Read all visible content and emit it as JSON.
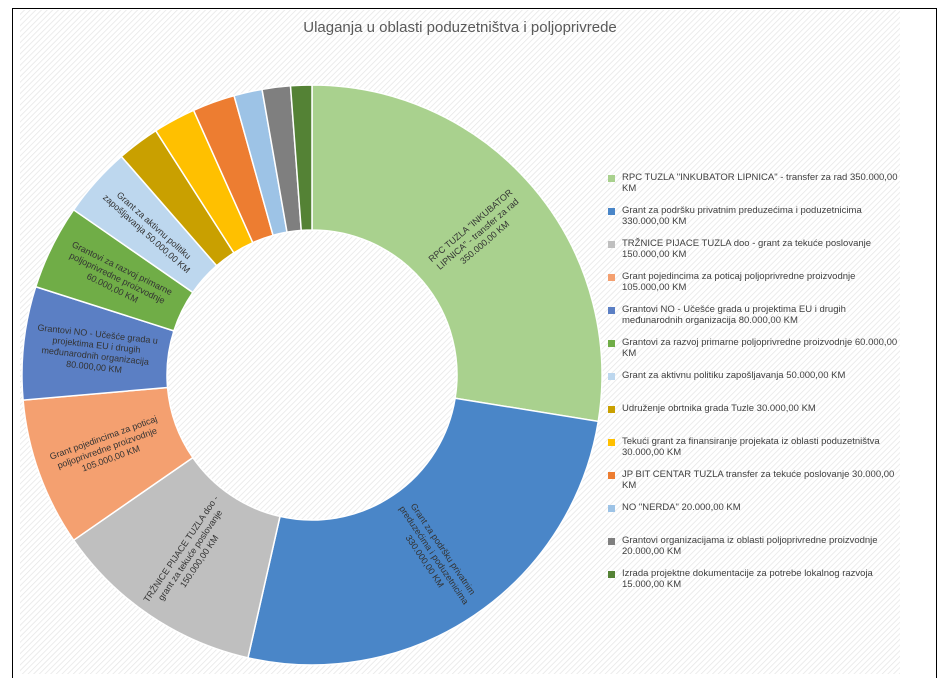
{
  "chart_data": {
    "type": "donut",
    "title": "Ulaganja u oblasti poduzetništva i poljoprivrede",
    "categories": [
      "RPC TUZLA \"INKUBATOR LIPNICA\"  - transfer za rad",
      "Grant za podršku privatnim preduzećima i poduzetnicima",
      "TRŽNICE PIJACE TUZLA doo - grant za tekuće poslovanje",
      "Grant pojedincima za poticaj poljoprivredne proizvodnje",
      "Grantovi NO - Učešće grada u projektima EU i drugih međunarodnih organizacija",
      "Grantovi za razvoj primarne poljoprivredne proizvodnje",
      "Grant za aktivnu politiku zapošljavanja",
      "Udruženje obrtnika grada Tuzle",
      "Tekući grant za finansiranje projekata iz oblasti poduzetništva",
      "JP BIT CENTAR TUZLA transfer za tekuće poslovanje",
      "NO \"NERDA\"",
      "Grantovi organizacijama iz oblasti poljoprivredne proizvodnje",
      "Izrada projektne dokumentacije za potrebe lokalnog razvoja"
    ],
    "values": [
      350000,
      330000,
      150000,
      105000,
      80000,
      60000,
      50000,
      30000,
      30000,
      30000,
      20000,
      20000,
      15000
    ],
    "value_labels": [
      "350.000,00 KM",
      "330.000,00 KM",
      "150.000,00 KM",
      "105.000,00 KM",
      "80.000,00 KM",
      "60.000,00 KM",
      "50.000,00 KM",
      "30.000,00 KM",
      "30.000,00 KM",
      "30.000,00 KM",
      "20.000,00 KM",
      "20.000,00 KM",
      "15.000,00 KM"
    ],
    "colors": [
      "#a9d18e",
      "#4a86c8",
      "#bfbfbf",
      "#f4a070",
      "#5b7fc4",
      "#70ad47",
      "#bdd7ee",
      "#c9a000",
      "#ffc000",
      "#ed7d31",
      "#9dc3e6",
      "#7f7f7f",
      "#548235"
    ],
    "legend": "right"
  }
}
